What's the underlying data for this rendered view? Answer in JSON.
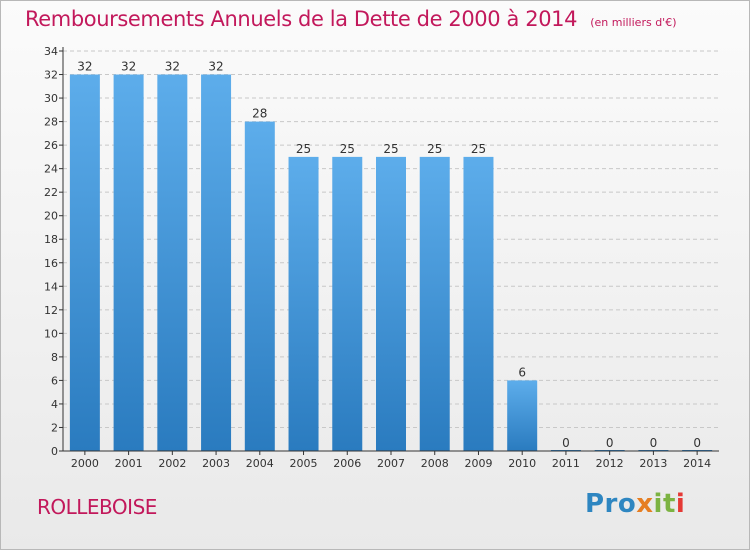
{
  "title": "Remboursements Annuels de la Dette de 2000 à 2014",
  "unit_label": "(en milliers d'€)",
  "commune": "ROLLEBOISE",
  "logo": {
    "text": "Proxiti",
    "parts": [
      "Pro",
      "x",
      "it",
      "i"
    ],
    "colors": [
      "#2e86c1",
      "#e67e22",
      "#7cb342",
      "#e53935"
    ]
  },
  "colors": {
    "title": "#c2185b",
    "bar_top": "#5dadeb",
    "bar_bottom": "#2a7bbf",
    "grid": "#c8c8c8",
    "axis": "#333333"
  },
  "chart_data": {
    "type": "bar",
    "title": "Remboursements Annuels de la Dette de 2000 à 2014",
    "xlabel": "",
    "ylabel": "",
    "categories": [
      "2000",
      "2001",
      "2002",
      "2003",
      "2004",
      "2005",
      "2006",
      "2007",
      "2008",
      "2009",
      "2010",
      "2011",
      "2012",
      "2013",
      "2014"
    ],
    "values": [
      32,
      32,
      32,
      32,
      28,
      25,
      25,
      25,
      25,
      25,
      6,
      0,
      0,
      0,
      0
    ],
    "ylim": [
      0,
      34
    ],
    "yticks": [
      0,
      2,
      4,
      6,
      8,
      10,
      12,
      14,
      16,
      18,
      20,
      22,
      24,
      26,
      28,
      30,
      32,
      34
    ],
    "grid": true,
    "data_labels": true,
    "legend": "none"
  }
}
